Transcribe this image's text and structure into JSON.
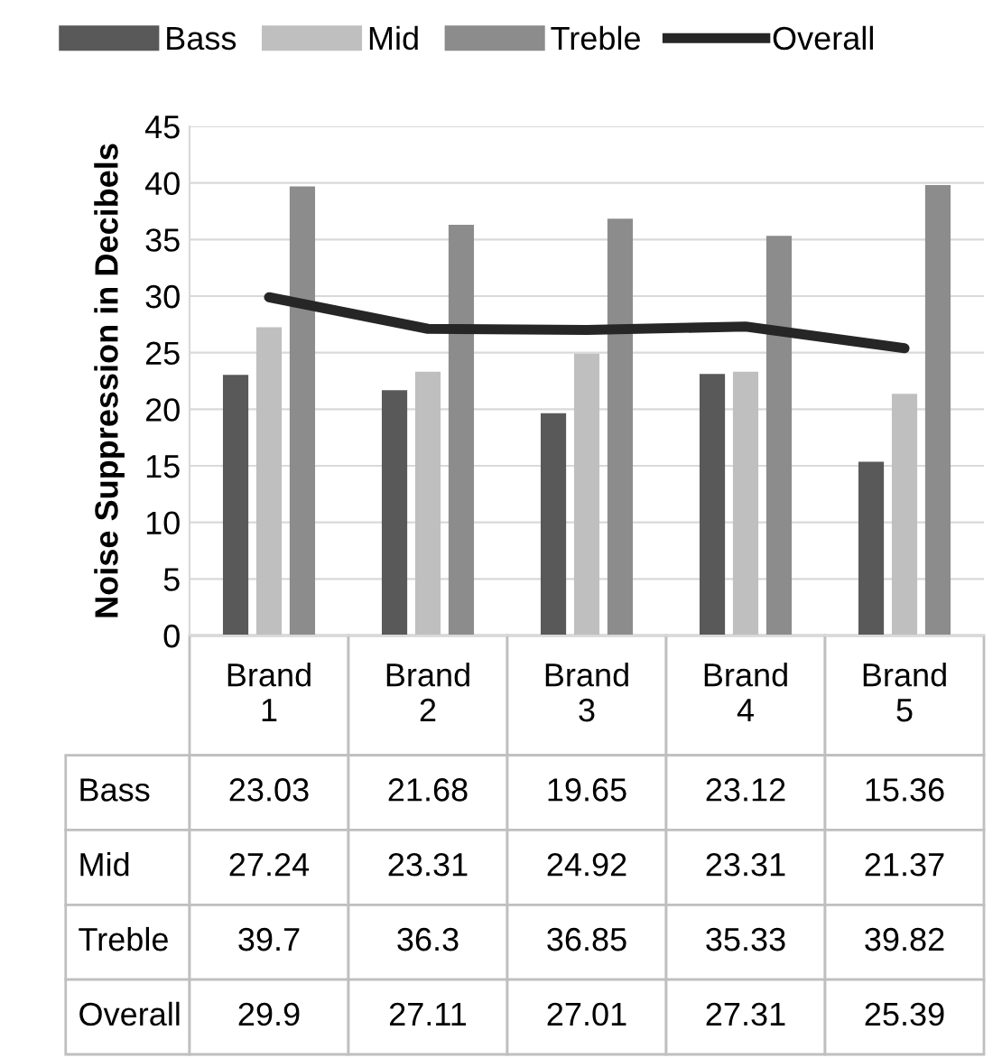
{
  "chart_data": {
    "type": "bar",
    "ylabel": "Noise Suppression in Decibels",
    "categories": [
      "Brand 1",
      "Brand 2",
      "Brand 3",
      "Brand 4",
      "Brand 5"
    ],
    "series": [
      {
        "name": "Bass",
        "color": "#595959",
        "values": [
          23.03,
          21.68,
          19.65,
          23.12,
          15.36
        ]
      },
      {
        "name": "Mid",
        "color": "#bfbfbf",
        "values": [
          27.24,
          23.31,
          24.92,
          23.31,
          21.37
        ]
      },
      {
        "name": "Treble",
        "color": "#8c8c8c",
        "values": [
          39.7,
          36.3,
          36.85,
          35.33,
          39.82
        ]
      },
      {
        "name": "Overall",
        "color": "#262626",
        "type": "line",
        "values": [
          29.9,
          27.11,
          27.01,
          27.31,
          25.39
        ]
      }
    ],
    "ylim": [
      0,
      45
    ],
    "yticks": [
      0,
      5,
      10,
      15,
      20,
      25,
      30,
      35,
      40,
      45
    ],
    "grid": "y",
    "legend": "top",
    "data_labels": true
  }
}
